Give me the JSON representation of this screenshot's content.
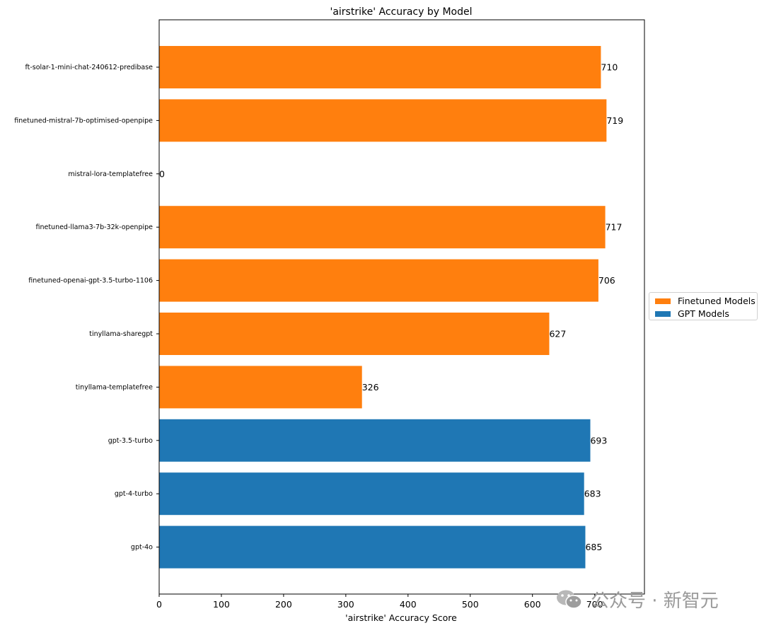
{
  "chart_data": {
    "type": "bar",
    "orientation": "horizontal",
    "title": "'airstrike' Accuracy by Model",
    "xlabel": "'airstrike' Accuracy Score",
    "ylabel": "",
    "xlim": [
      0,
      780
    ],
    "xticks": [
      0,
      100,
      200,
      300,
      400,
      500,
      600,
      700
    ],
    "grid": false,
    "legend_position": "right-center",
    "categories": [
      "ft-solar-1-mini-chat-240612-predibase",
      "finetuned-mistral-7b-optimised-openpipe",
      "mistral-lora-templatefree",
      "finetuned-llama3-7b-32k-openpipe",
      "finetuned-openai-gpt-3.5-turbo-1106",
      "tinyllama-sharegpt",
      "tinyllama-templatefree",
      "gpt-3.5-turbo",
      "gpt-4-turbo",
      "gpt-4o"
    ],
    "values": [
      710,
      719,
      0,
      717,
      706,
      627,
      326,
      693,
      683,
      685
    ],
    "groups": [
      "Finetuned Models",
      "Finetuned Models",
      "Finetuned Models",
      "Finetuned Models",
      "Finetuned Models",
      "Finetuned Models",
      "Finetuned Models",
      "GPT Models",
      "GPT Models",
      "GPT Models"
    ],
    "series": [
      {
        "name": "Finetuned Models",
        "color": "#ff7f0e"
      },
      {
        "name": "GPT Models",
        "color": "#1f77b4"
      }
    ]
  },
  "watermark": {
    "text": "公众号 · 新智元",
    "icon": "wechat-icon"
  }
}
